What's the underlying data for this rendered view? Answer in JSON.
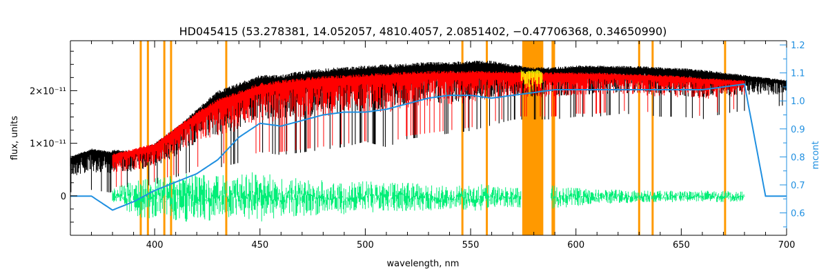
{
  "chart_data": {
    "type": "line",
    "title": "HD045415    (53.278381, 14.052057, 4810.4057, 2.0851402, −0.47706368, 0.34650990)",
    "xlabel": "wavelength, nm",
    "ylabel": "flux, units",
    "ylabel_right": "mcont",
    "xlim": [
      360,
      700
    ],
    "ylim": [
      -7.5e-12,
      2.95e-11
    ],
    "ylim_right": [
      0.52,
      1.215
    ],
    "x_ticks": [
      400,
      450,
      500,
      550,
      600,
      650,
      700
    ],
    "y_ticks": [
      {
        "value": 0,
        "label": "0"
      },
      {
        "value": 1e-11,
        "label": "1×10⁻¹¹"
      },
      {
        "value": 2e-11,
        "label": "2×10⁻¹¹"
      }
    ],
    "y_right_ticks": [
      0.6,
      0.7,
      0.8,
      0.9,
      1.0,
      1.1,
      1.2
    ],
    "masked_lines_nm": [
      393.4,
      396.8,
      404.6,
      407.8,
      434.0,
      546.1,
      557.7,
      588.9,
      589.6,
      630.0,
      636.4,
      670.8
    ],
    "masked_band_nm": [
      574.5,
      584.5
    ],
    "colors": {
      "observed": "#000000",
      "model": "#ff0000",
      "residual": "#00ee77",
      "continuum": "#1f8fe0",
      "mask": "#ff9900",
      "telluric": "#ffff00"
    },
    "series": [
      {
        "type": "envelope",
        "color_key": "observed",
        "x": [
          360,
          370,
          379,
          381,
          390,
          400,
          410,
          420,
          430,
          440,
          450,
          460,
          470,
          480,
          490,
          500,
          510,
          520,
          530,
          540,
          550,
          560,
          570,
          580,
          590,
          600,
          610,
          620,
          630,
          640,
          650,
          660,
          670,
          680,
          690,
          700
        ],
        "high": [
          7.5e-12,
          9e-12,
          8.5e-12,
          8.8e-12,
          8.5e-12,
          1e-11,
          1.3e-11,
          1.65e-11,
          2e-11,
          2.15e-11,
          2.3e-11,
          2.3e-11,
          2.38e-11,
          2.42e-11,
          2.45e-11,
          2.48e-11,
          2.5e-11,
          2.52e-11,
          2.55e-11,
          2.55e-11,
          2.57e-11,
          2.57e-11,
          2.5e-11,
          2.45e-11,
          2.45e-11,
          2.48e-11,
          2.48e-11,
          2.47e-11,
          2.47e-11,
          2.45e-11,
          2.43e-11,
          2.4e-11,
          2.35e-11,
          2.3e-11,
          2.25e-11,
          2.2e-11
        ],
        "low": [
          1e-12,
          1.5e-12,
          1e-12,
          2e-12,
          2e-12,
          2.5e-12,
          4e-12,
          5.5e-12,
          6e-12,
          7e-12,
          9e-12,
          8.5e-12,
          9e-12,
          9.5e-12,
          1e-11,
          1.1e-11,
          1e-11,
          1.15e-11,
          1.2e-11,
          1.25e-11,
          1.3e-11,
          1.4e-11,
          1.5e-11,
          1.5e-11,
          1.5e-11,
          1.55e-11,
          1.55e-11,
          1.6e-11,
          1.6e-11,
          1.55e-11,
          1.55e-11,
          1.5e-11,
          1.6e-11,
          1.65e-11,
          1.7e-11,
          1.75e-11
        ]
      },
      {
        "type": "envelope",
        "color_key": "model",
        "x": [
          380,
          390,
          400,
          410,
          420,
          430,
          440,
          450,
          460,
          470,
          480,
          490,
          500,
          510,
          520,
          530,
          540,
          550,
          560,
          570,
          580,
          590,
          600,
          610,
          620,
          630,
          640,
          650,
          660,
          670,
          680
        ],
        "high": [
          8e-12,
          9e-12,
          1e-11,
          1.3e-11,
          1.6e-11,
          1.85e-11,
          2e-11,
          2.15e-11,
          2.2e-11,
          2.25e-11,
          2.28e-11,
          2.3e-11,
          2.32e-11,
          2.35e-11,
          2.36e-11,
          2.38e-11,
          2.38e-11,
          2.38e-11,
          2.38e-11,
          2.37e-11,
          2.35e-11,
          2.35e-11,
          2.35e-11,
          2.35e-11,
          2.33e-11,
          2.32e-11,
          2.3e-11,
          2.28e-11,
          2.25e-11,
          2.22e-11,
          2.2e-11
        ],
        "low": [
          2e-12,
          2e-12,
          3e-12,
          4.5e-12,
          6e-12,
          6.5e-12,
          7.5e-12,
          9e-12,
          9e-12,
          9.5e-12,
          1e-11,
          1.05e-11,
          1.1e-11,
          1.05e-11,
          1.2e-11,
          1.25e-11,
          1.3e-11,
          1.35e-11,
          1.45e-11,
          1.55e-11,
          1.55e-11,
          1.55e-11,
          1.6e-11,
          1.6e-11,
          1.65e-11,
          1.65e-11,
          1.6e-11,
          1.6e-11,
          1.55e-11,
          1.65e-11,
          1.7e-11
        ]
      },
      {
        "type": "envelope",
        "color_key": "residual",
        "x": [
          380,
          390,
          400,
          410,
          420,
          430,
          440,
          450,
          460,
          470,
          480,
          490,
          500,
          510,
          520,
          530,
          540,
          550,
          560,
          570,
          590,
          600,
          610,
          620,
          630,
          640,
          650,
          660,
          670,
          680
        ],
        "high": [
          1.5e-12,
          3e-12,
          3.5e-12,
          4e-12,
          4.5e-12,
          4e-12,
          4e-12,
          5e-12,
          3.5e-12,
          3.5e-12,
          3e-12,
          2.5e-12,
          3e-12,
          2.5e-12,
          2.5e-12,
          2.2e-12,
          2e-12,
          2.5e-12,
          2e-12,
          1.8e-12,
          2e-12,
          1.5e-12,
          1.2e-12,
          1.2e-12,
          1e-12,
          1e-12,
          1e-12,
          1e-12,
          1e-12,
          8e-13
        ],
        "low": [
          -1.5e-12,
          -4e-12,
          -4.5e-12,
          -5e-12,
          -5e-12,
          -4.5e-12,
          -4.5e-12,
          -5e-12,
          -4e-12,
          -4e-12,
          -3.5e-12,
          -3.5e-12,
          -3.5e-12,
          -3e-12,
          -3e-12,
          -2.8e-12,
          -2.5e-12,
          -3e-12,
          -2.5e-12,
          -2.2e-12,
          -2.5e-12,
          -2e-12,
          -1.5e-12,
          -1.5e-12,
          -1.2e-12,
          -1.2e-12,
          -1.2e-12,
          -1.2e-12,
          -1.2e-12,
          -1e-12
        ]
      },
      {
        "type": "line",
        "color_key": "continuum",
        "axis": "right",
        "x": [
          360,
          370,
          380,
          390,
          400,
          410,
          420,
          430,
          440,
          450,
          460,
          470,
          480,
          490,
          500,
          510,
          520,
          530,
          540,
          550,
          560,
          570,
          580,
          590,
          600,
          610,
          620,
          630,
          640,
          650,
          660,
          670,
          680,
          690,
          700
        ],
        "y": [
          0.66,
          0.66,
          0.61,
          0.64,
          0.68,
          0.71,
          0.74,
          0.79,
          0.87,
          0.92,
          0.91,
          0.93,
          0.95,
          0.96,
          0.96,
          0.97,
          0.99,
          1.01,
          1.02,
          1.02,
          1.01,
          1.02,
          1.03,
          1.04,
          1.04,
          1.04,
          1.04,
          1.04,
          1.04,
          1.04,
          1.04,
          1.05,
          1.06,
          0.66,
          0.66
        ]
      },
      {
        "type": "telluric",
        "color_key": "telluric",
        "x": [
          574,
          576,
          578,
          580,
          582,
          584
        ],
        "high": [
          2.4e-11,
          2.35e-11,
          2.4e-11,
          2.38e-11,
          2.4e-11,
          2.35e-11
        ],
        "low": [
          1.9e-11,
          1.75e-11,
          1.8e-11,
          1.7e-11,
          1.8e-11,
          1.85e-11
        ]
      }
    ]
  }
}
